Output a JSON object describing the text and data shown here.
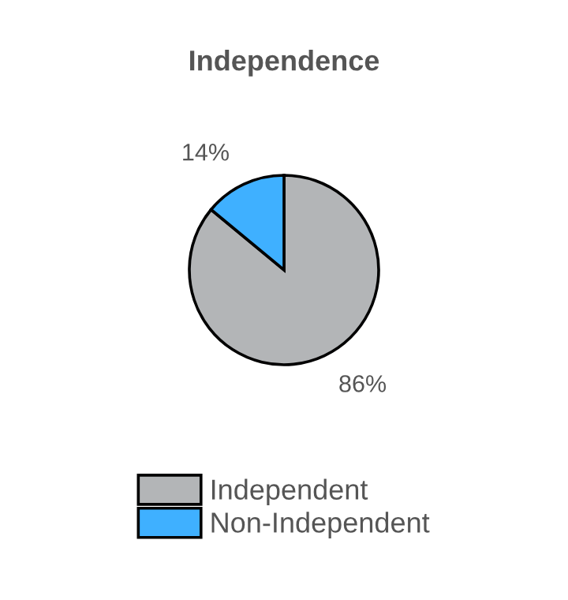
{
  "chart_data": {
    "type": "pie",
    "title": "Independence",
    "categories": [
      "Independent",
      "Non-Independent"
    ],
    "values": [
      86,
      14
    ],
    "colors": [
      "#b3b5b7",
      "#3fb0ff"
    ],
    "value_labels": [
      "86%",
      "14%"
    ],
    "legend": "bottom"
  }
}
